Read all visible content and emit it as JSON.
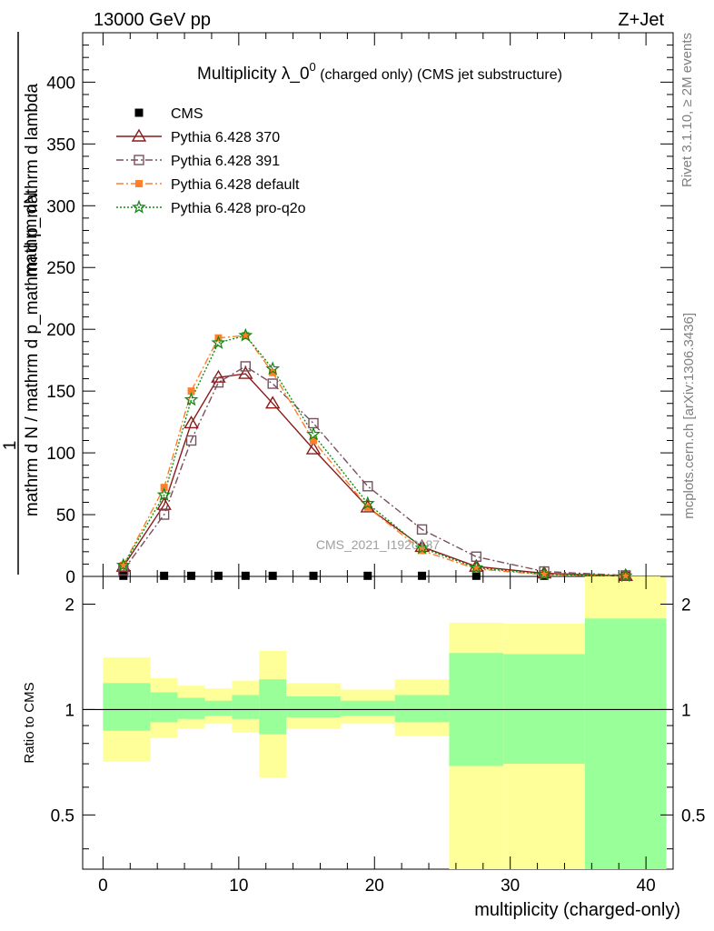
{
  "header": {
    "left": "13000 GeV pp",
    "right": "Z+Jet"
  },
  "side_text": {
    "rivet": "Rivet 3.1.10, ≥ 2M events",
    "mcplots": "mcplots.cern.ch [arXiv:1306.3436]"
  },
  "watermark": "CMS_2021_I1920187",
  "colors": {
    "cms": "#000000",
    "p370": "#8b1a1a",
    "p391": "#7b4f5f",
    "pdefault": "#ff7f2a",
    "pq2o": "#138a13",
    "band_yellow": "#ffff99",
    "band_green": "#99ff99"
  },
  "chart_data": [
    {
      "type": "line",
      "title": "Multiplicity λ_0",
      "title_sup": "0",
      "title_suffix": " (charged only) (CMS jet substructure)",
      "ylabel_numerator": "mathrm dN",
      "ylabel_one": "1",
      "ylabel_denominator": "mathrm d N / mathrm d p_mathrm d p_mathrm d lambda",
      "ylim": [
        0,
        440
      ],
      "yticks": [
        0,
        50,
        100,
        150,
        200,
        250,
        300,
        350,
        400
      ],
      "xlim": [
        -1.5,
        42
      ],
      "x": [
        1.5,
        4.5,
        6.5,
        8.5,
        10.5,
        12.5,
        15.5,
        19.5,
        23.5,
        27.5,
        32.5,
        38.5
      ],
      "series": [
        {
          "name": "CMS",
          "key": "cms",
          "marker": "square",
          "values": [
            0.5,
            0.5,
            0.5,
            0.5,
            0.5,
            0.5,
            0.5,
            0.5,
            0.5,
            0.5,
            0.5,
            0.5
          ]
        },
        {
          "name": "Pythia 6.428 370",
          "key": "p370",
          "marker": "triangle",
          "values": [
            8,
            58,
            124,
            161,
            164,
            140,
            103,
            56,
            24,
            8,
            2.5,
            0.5
          ]
        },
        {
          "name": "Pythia 6.428 391",
          "key": "p391",
          "marker": "open-square",
          "values": [
            5,
            50,
            110,
            157,
            170,
            156,
            124,
            73,
            38,
            16,
            4,
            0.8
          ]
        },
        {
          "name": "Pythia 6.428 default",
          "key": "pdefault",
          "marker": "filled-square",
          "values": [
            9,
            72,
            150,
            193,
            195,
            165,
            110,
            56,
            21,
            6,
            1.5,
            0.3
          ]
        },
        {
          "name": "Pythia 6.428 pro-q2o",
          "key": "pq2o",
          "marker": "star",
          "values": [
            9,
            66,
            143,
            189,
            195,
            168,
            115,
            59,
            23,
            7,
            1.8,
            0.4
          ]
        }
      ]
    },
    {
      "type": "area",
      "ylabel": "Ratio to CMS",
      "xlabel": "multiplicity (charged-only)",
      "ylim": [
        0.35,
        2.4
      ],
      "yticks": [
        0.5,
        1,
        2
      ],
      "xticks": [
        0,
        10,
        20,
        30,
        40
      ],
      "bins": [
        {
          "lo": 0,
          "hi": 3.5,
          "y_lo": 0.71,
          "y_hi": 1.41,
          "g_lo": 0.87,
          "g_hi": 1.19
        },
        {
          "lo": 3.5,
          "hi": 5.5,
          "y_lo": 0.83,
          "y_hi": 1.23,
          "g_lo": 0.92,
          "g_hi": 1.12
        },
        {
          "lo": 5.5,
          "hi": 7.5,
          "y_lo": 0.88,
          "y_hi": 1.17,
          "g_lo": 0.94,
          "g_hi": 1.08
        },
        {
          "lo": 7.5,
          "hi": 9.5,
          "y_lo": 0.91,
          "y_hi": 1.15,
          "g_lo": 0.96,
          "g_hi": 1.06
        },
        {
          "lo": 9.5,
          "hi": 11.5,
          "y_lo": 0.86,
          "y_hi": 1.21,
          "g_lo": 0.94,
          "g_hi": 1.1
        },
        {
          "lo": 11.5,
          "hi": 13.5,
          "y_lo": 0.64,
          "y_hi": 1.47,
          "g_lo": 0.85,
          "g_hi": 1.22
        },
        {
          "lo": 13.5,
          "hi": 17.5,
          "y_lo": 0.88,
          "y_hi": 1.19,
          "g_lo": 0.95,
          "g_hi": 1.09
        },
        {
          "lo": 17.5,
          "hi": 21.5,
          "y_lo": 0.91,
          "y_hi": 1.14,
          "g_lo": 0.96,
          "g_hi": 1.06
        },
        {
          "lo": 21.5,
          "hi": 25.5,
          "y_lo": 0.84,
          "y_hi": 1.22,
          "g_lo": 0.92,
          "g_hi": 1.1
        },
        {
          "lo": 25.5,
          "hi": 29.5,
          "y_lo": 0.35,
          "y_hi": 1.77,
          "g_lo": 0.69,
          "g_hi": 1.45
        },
        {
          "lo": 29.5,
          "hi": 35.5,
          "y_lo": 0.35,
          "y_hi": 1.76,
          "g_lo": 0.7,
          "g_hi": 1.44
        },
        {
          "lo": 35.5,
          "hi": 41.5,
          "y_lo": 0.35,
          "y_hi": 2.4,
          "g_lo": 0.35,
          "g_hi": 1.82
        }
      ]
    }
  ]
}
